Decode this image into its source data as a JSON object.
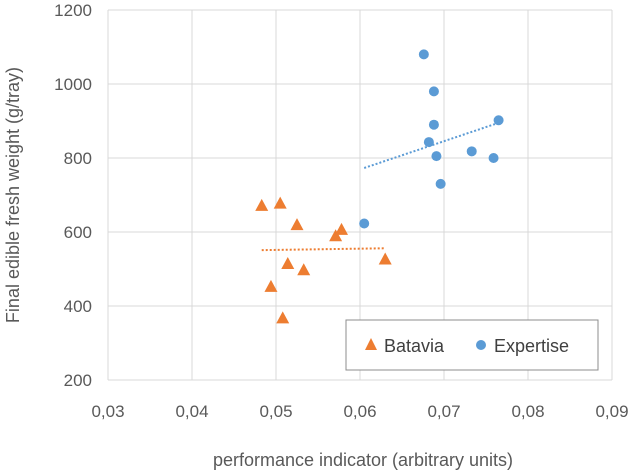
{
  "chart_data": {
    "type": "scatter",
    "title": "",
    "xlabel": "performance indicator (arbitrary units)",
    "ylabel": "Final edible fresh weight (g/tray)",
    "xlim": [
      0.03,
      0.09
    ],
    "ylim": [
      200,
      1200
    ],
    "x_ticks": [
      0.03,
      0.04,
      0.05,
      0.06,
      0.07,
      0.08,
      0.09
    ],
    "x_tick_labels": [
      "0,03",
      "0,04",
      "0,05",
      "0,06",
      "0,07",
      "0,08",
      "0,09"
    ],
    "y_ticks": [
      200,
      400,
      600,
      800,
      1000,
      1200
    ],
    "y_tick_labels": [
      "200",
      "400",
      "600",
      "800",
      "1000",
      "1200"
    ],
    "grid": true,
    "legend_position": "bottom-right",
    "series": [
      {
        "name": "Batavia",
        "marker": "triangle",
        "color": "#ED7D31",
        "points": [
          {
            "x": 0.0483,
            "y": 672
          },
          {
            "x": 0.0505,
            "y": 678
          },
          {
            "x": 0.0525,
            "y": 620
          },
          {
            "x": 0.0571,
            "y": 590
          },
          {
            "x": 0.0578,
            "y": 607
          },
          {
            "x": 0.0514,
            "y": 515
          },
          {
            "x": 0.0533,
            "y": 498
          },
          {
            "x": 0.0494,
            "y": 453
          },
          {
            "x": 0.0508,
            "y": 368
          },
          {
            "x": 0.063,
            "y": 527
          }
        ],
        "trendline": {
          "x": [
            0.0483,
            0.063
          ],
          "y": [
            551,
            556
          ]
        }
      },
      {
        "name": "Expertise",
        "marker": "circle",
        "color": "#5B9BD5",
        "points": [
          {
            "x": 0.0605,
            "y": 623
          },
          {
            "x": 0.0676,
            "y": 1080
          },
          {
            "x": 0.0688,
            "y": 980
          },
          {
            "x": 0.0688,
            "y": 890
          },
          {
            "x": 0.0682,
            "y": 843
          },
          {
            "x": 0.0691,
            "y": 805
          },
          {
            "x": 0.0696,
            "y": 730
          },
          {
            "x": 0.0733,
            "y": 818
          },
          {
            "x": 0.0759,
            "y": 800
          },
          {
            "x": 0.0765,
            "y": 902
          }
        ],
        "trendline": {
          "x": [
            0.0605,
            0.0765
          ],
          "y": [
            773,
            895
          ]
        }
      }
    ]
  }
}
